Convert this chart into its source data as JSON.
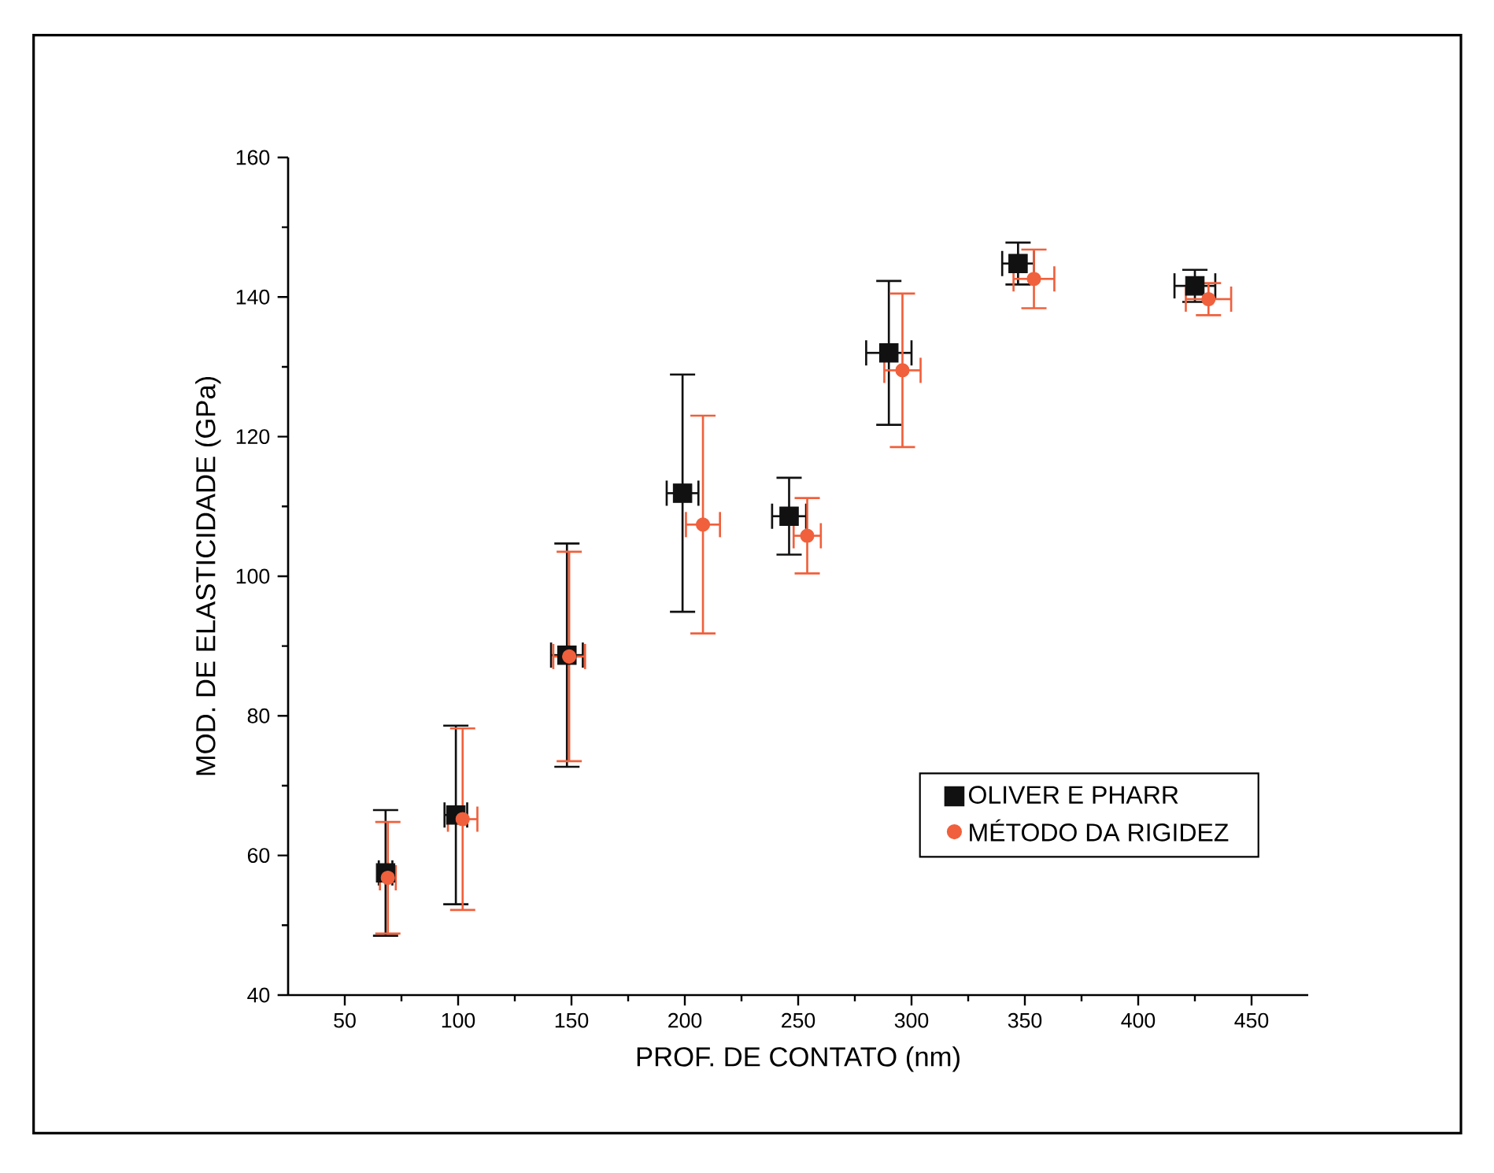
{
  "chart_data": {
    "type": "scatter",
    "xlabel": "PROF. DE CONTATO (nm)",
    "ylabel": "MOD. DE ELASTICIDADE (GPa)",
    "xlim": [
      25,
      475
    ],
    "ylim": [
      40,
      160
    ],
    "xticks": [
      50,
      100,
      150,
      200,
      250,
      300,
      350,
      400,
      450
    ],
    "yticks": [
      40,
      60,
      80,
      100,
      120,
      140,
      160
    ],
    "grid": false,
    "legend": "bottom right",
    "series": [
      {
        "name": "OLIVER E PHARR",
        "color": "#111111",
        "marker": "square",
        "x": [
          68,
          99,
          148,
          199,
          246,
          290,
          347,
          425
        ],
        "values": [
          57.5,
          65.8,
          88.7,
          111.9,
          108.6,
          132.0,
          144.8,
          141.6
        ],
        "errors": [
          9,
          12.8,
          16,
          17,
          5.5,
          10.3,
          3,
          2.3
        ],
        "xerrors": [
          3,
          5,
          7,
          7,
          7.5,
          10,
          7,
          9
        ]
      },
      {
        "name": "MÉTODO DA RIGIDEZ",
        "color": "#f0603c",
        "marker": "circle",
        "x": [
          69,
          102,
          149,
          208,
          254,
          296,
          354,
          431
        ],
        "values": [
          56.8,
          65.2,
          88.5,
          107.4,
          105.8,
          129.5,
          142.6,
          139.7
        ],
        "errors": [
          8,
          13,
          15,
          15.6,
          5.4,
          11,
          4.2,
          2.3
        ],
        "xerrors": [
          3.5,
          6.5,
          7,
          7.5,
          6,
          8,
          9,
          10
        ]
      }
    ]
  }
}
